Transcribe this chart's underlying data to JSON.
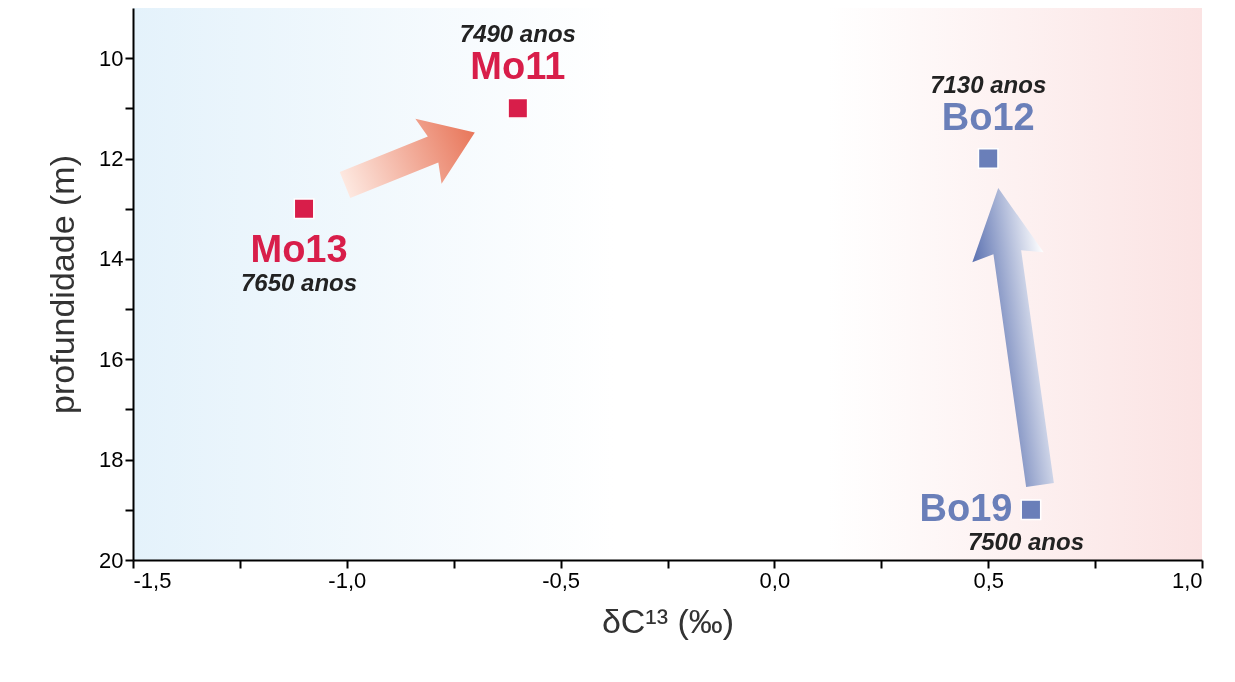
{
  "chart_data": {
    "type": "scatter",
    "xlabel": "δC¹³ (‰)",
    "ylabel": "profundidade (m)",
    "series": [
      {
        "name": "Mo11",
        "color": "#d81e4a",
        "x": [
          -0.6
        ],
        "values": [
          11
        ]
      },
      {
        "name": "Mo13",
        "color": "#d81e4a",
        "x": [
          -1.1
        ],
        "values": [
          13
        ]
      },
      {
        "name": "Bo12",
        "color": "#6a7fb9",
        "x": [
          0.5
        ],
        "values": [
          12
        ]
      },
      {
        "name": "Bo19",
        "color": "#6a7fb9",
        "x": [
          0.6
        ],
        "values": [
          19
        ]
      }
    ],
    "annotations": [
      {
        "text": "7490 anos",
        "x": -0.6,
        "y": 11
      },
      {
        "text": "7650 anos",
        "x": -1.1,
        "y": 13
      },
      {
        "text": "7130 anos",
        "x": 0.5,
        "y": 12
      },
      {
        "text": "7500 anos",
        "x": 0.6,
        "y": 19
      }
    ],
    "xlim": [
      -1.5,
      1.0
    ],
    "xticks": [
      {
        "value": -1.5,
        "label": "-1,5"
      },
      {
        "value": -1.25,
        "label": null
      },
      {
        "value": -1.0,
        "label": "-1,0"
      },
      {
        "value": -0.75,
        "label": null
      },
      {
        "value": -0.5,
        "label": "-0,5"
      },
      {
        "value": -0.25,
        "label": null
      },
      {
        "value": 0.0,
        "label": "0,0"
      },
      {
        "value": 0.25,
        "label": null
      },
      {
        "value": 0.5,
        "label": "0,5"
      },
      {
        "value": 0.75,
        "label": null
      },
      {
        "value": 1.0,
        "label": "1,0"
      }
    ],
    "ylim": [
      20,
      9
    ],
    "yticks": [
      10,
      {
        "value": 11,
        "label": null
      },
      12,
      {
        "value": 13,
        "label": null
      },
      14,
      {
        "value": 15,
        "label": null
      },
      16,
      {
        "value": 17,
        "label": null
      },
      18,
      {
        "value": 19,
        "label": null
      },
      20
    ],
    "marker": "square",
    "grid": false
  }
}
